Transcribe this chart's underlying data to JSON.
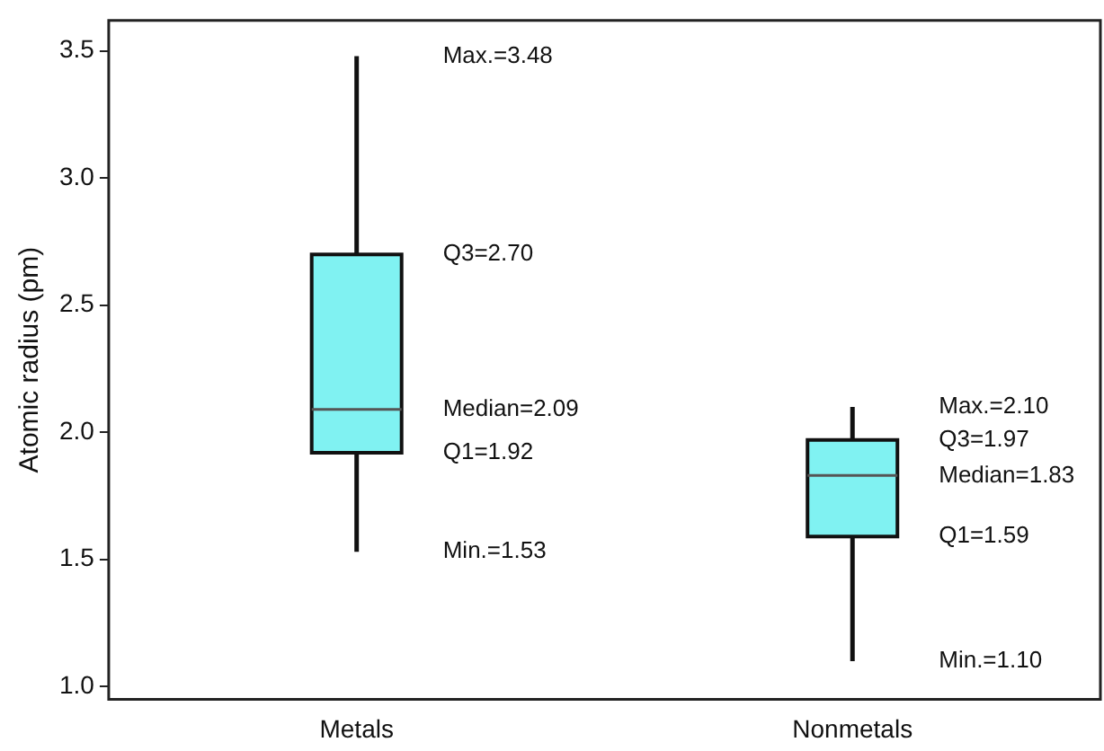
{
  "chart_data": {
    "type": "box",
    "ylabel": "Atomic radius (pm)",
    "categories": [
      "Metals",
      "Nonmetals"
    ],
    "series": [
      {
        "color": "#80f2f2",
        "boxes": [
          {
            "low": 1.53,
            "q1": 1.92,
            "median": 2.09,
            "q3": 2.7,
            "high": 3.48
          },
          {
            "low": 1.1,
            "q1": 1.59,
            "median": 1.83,
            "q3": 1.97,
            "high": 2.1
          }
        ]
      }
    ],
    "ylim": [
      0.95,
      3.62
    ],
    "yticks": [
      {
        "value": 1.0,
        "label": "1.0"
      },
      1.5,
      {
        "value": 2.0,
        "label": "2.0"
      },
      2.5,
      {
        "value": 3.0,
        "label": "3.0"
      },
      3.5
    ],
    "grid": false,
    "legend": false,
    "annotations": [
      "Max.=3.48",
      "Q3=2.70",
      "Median=2.09",
      "Q1=1.92",
      "Min.=1.53",
      "Max.=2.10",
      "Q3=1.97",
      "Median=1.83",
      "Q1=1.59",
      "Min.=1.10"
    ]
  }
}
